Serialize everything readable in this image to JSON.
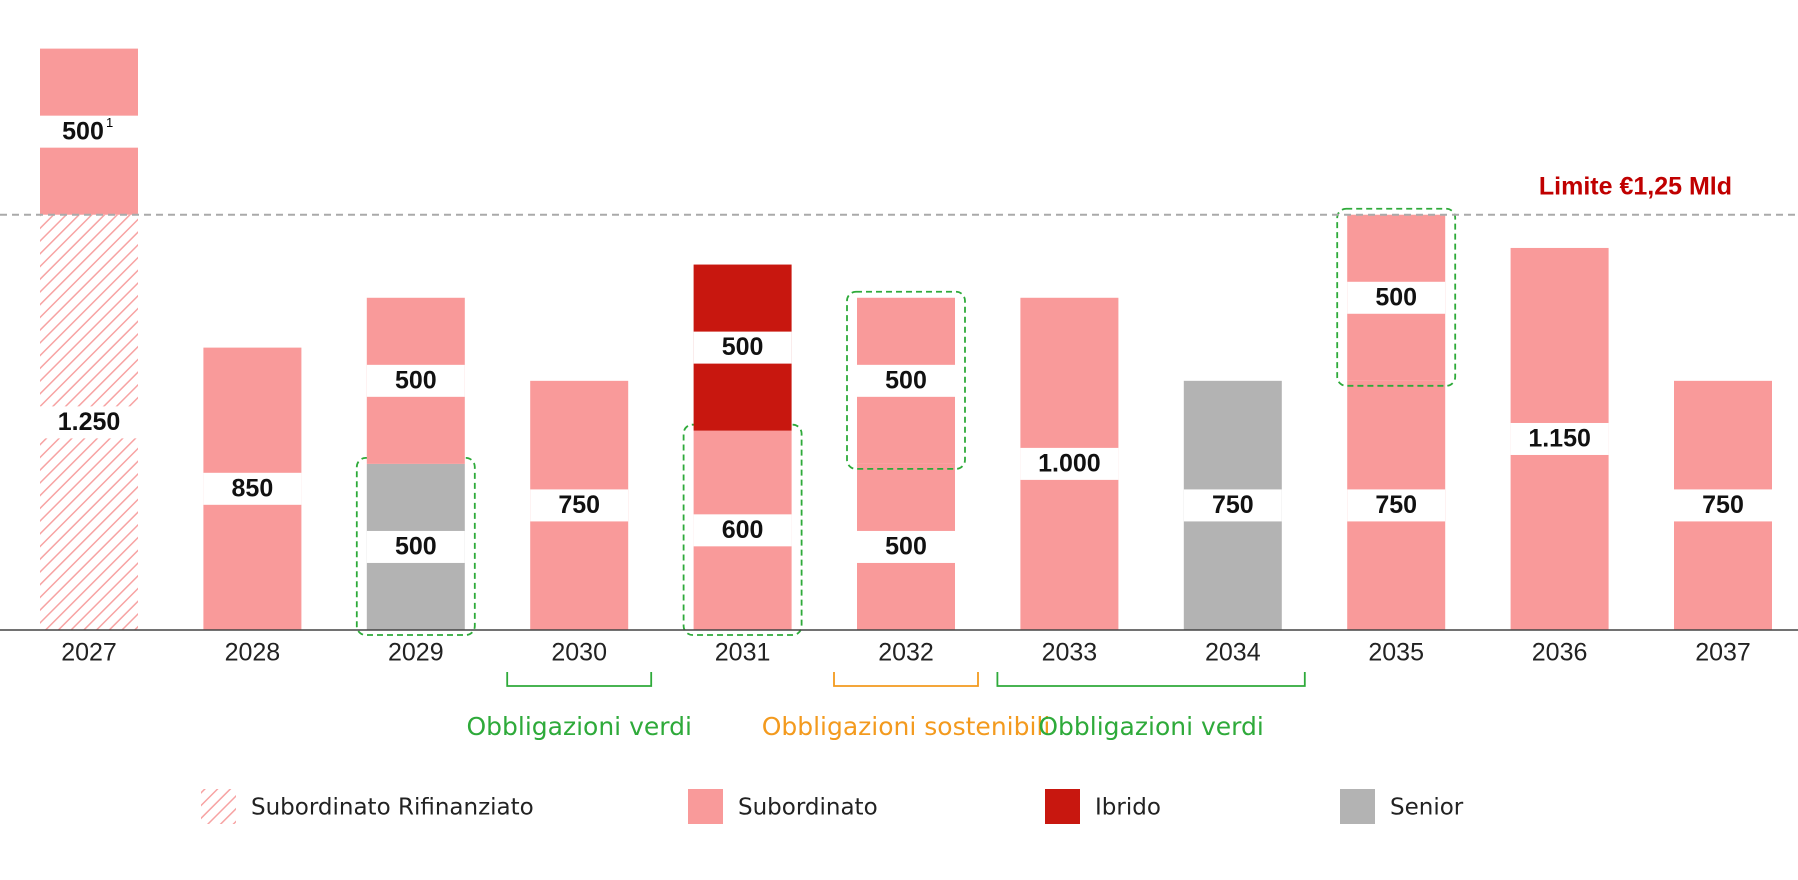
{
  "chart_data": {
    "type": "stacked-bar",
    "categories": [
      "2027",
      "2028",
      "2029",
      "2030",
      "2031",
      "2032",
      "2033",
      "2034",
      "2035",
      "2036",
      "2037"
    ],
    "series": [
      {
        "name": "Subordinato Rifinanziato",
        "color": "#f7a3a3",
        "pattern": "hatch"
      },
      {
        "name": "Subordinato",
        "color": "#f99a9a"
      },
      {
        "name": "Ibrido",
        "color": "#c8170f"
      },
      {
        "name": "Senior",
        "color": "#b3b3b3"
      }
    ],
    "stacks": [
      [
        {
          "series": "Subordinato Rifinanziato",
          "value": 1250,
          "value_label": "1.250"
        },
        {
          "series": "Subordinato",
          "value": 500,
          "footnote": "1"
        }
      ],
      [
        {
          "series": "Subordinato",
          "value": 850
        }
      ],
      [
        {
          "series": "Senior",
          "value": 500,
          "highlight": true
        },
        {
          "series": "Subordinato",
          "value": 500
        }
      ],
      [
        {
          "series": "Subordinato",
          "value": 750
        }
      ],
      [
        {
          "series": "Subordinato",
          "value": 600,
          "highlight": true
        },
        {
          "series": "Ibrido",
          "value": 500
        }
      ],
      [
        {
          "series": "Subordinato",
          "value": 500
        },
        {
          "series": "Subordinato",
          "value": 500,
          "highlight": true
        }
      ],
      [
        {
          "series": "Subordinato",
          "value": 1000,
          "value_label": "1.000"
        }
      ],
      [
        {
          "series": "Senior",
          "value": 750
        }
      ],
      [
        {
          "series": "Subordinato",
          "value": 750
        },
        {
          "series": "Subordinato",
          "value": 500,
          "highlight": true
        }
      ],
      [
        {
          "series": "Subordinato",
          "value": 1150,
          "value_label": "1.150"
        }
      ],
      [
        {
          "series": "Subordinato",
          "value": 750
        }
      ]
    ],
    "ylim": [
      0,
      1800
    ],
    "limit": {
      "value": 1250,
      "label": "Limite €1,25 Mld",
      "color": "#c00000"
    },
    "highlight_color": "#2eaa3a",
    "groups": [
      {
        "label": "Obbligazioni verdi",
        "color": "#2eaa3a",
        "from": "2030",
        "to": "2030"
      },
      {
        "label": "Obbligazioni sostenibili",
        "color": "#f39a1e",
        "from": "2032",
        "to": "2032"
      },
      {
        "label": "Obbligazioni verdi",
        "color": "#2eaa3a",
        "from": "2033",
        "to": "2034"
      }
    ]
  }
}
